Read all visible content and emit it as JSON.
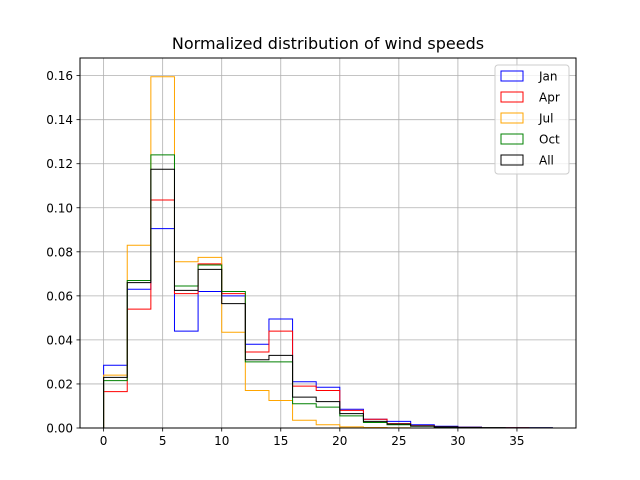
{
  "chart_data": {
    "type": "histogram",
    "title": "Normalized distribution of wind speeds",
    "xlabel": "",
    "ylabel": "",
    "xlim": [
      -2,
      40
    ],
    "ylim": [
      0,
      0.168
    ],
    "grid": true,
    "legend_position": "top-right",
    "bin_edges": [
      0,
      2,
      4,
      6,
      8,
      10,
      12,
      14,
      16,
      18,
      20,
      22,
      24,
      26,
      28,
      30,
      32,
      34,
      36,
      38
    ],
    "x_ticks": [
      0,
      5,
      10,
      15,
      20,
      25,
      30,
      35
    ],
    "y_ticks": [
      0.0,
      0.02,
      0.04,
      0.06,
      0.08,
      0.1,
      0.12,
      0.14,
      0.16
    ],
    "x_tick_labels": [
      "0",
      "5",
      "10",
      "15",
      "20",
      "25",
      "30",
      "35"
    ],
    "y_tick_labels": [
      "0.00",
      "0.02",
      "0.04",
      "0.06",
      "0.08",
      "0.10",
      "0.12",
      "0.14",
      "0.16"
    ],
    "series": [
      {
        "name": "Jan",
        "color": "#0000ff",
        "values": [
          0.0285,
          0.063,
          0.0905,
          0.044,
          0.062,
          0.06,
          0.038,
          0.0495,
          0.021,
          0.0185,
          0.0085,
          0.004,
          0.003,
          0.0015,
          0.0008,
          0.0004,
          0.0002,
          0.0001,
          0.0001
        ]
      },
      {
        "name": "Apr",
        "color": "#ff0000",
        "values": [
          0.0165,
          0.054,
          0.1035,
          0.061,
          0.0745,
          0.061,
          0.0345,
          0.044,
          0.019,
          0.017,
          0.008,
          0.004,
          0.002,
          0.001,
          0.0005,
          0.0003,
          0.0001,
          0.0001,
          0.0
        ]
      },
      {
        "name": "Jul",
        "color": "#ffa500",
        "values": [
          0.024,
          0.083,
          0.1595,
          0.0755,
          0.0775,
          0.0435,
          0.017,
          0.0125,
          0.0035,
          0.0015,
          0.0005,
          0.0002,
          0.0001,
          0.0,
          0.0,
          0.0,
          0.0,
          0.0,
          0.0
        ]
      },
      {
        "name": "Oct",
        "color": "#008000",
        "values": [
          0.0215,
          0.067,
          0.124,
          0.0645,
          0.074,
          0.062,
          0.03,
          0.03,
          0.011,
          0.0095,
          0.0055,
          0.0025,
          0.0015,
          0.0008,
          0.0004,
          0.0002,
          0.0001,
          0.0,
          0.0
        ]
      },
      {
        "name": "All",
        "color": "#000000",
        "values": [
          0.023,
          0.066,
          0.1175,
          0.0625,
          0.072,
          0.0565,
          0.031,
          0.033,
          0.014,
          0.012,
          0.0065,
          0.003,
          0.0018,
          0.0009,
          0.0005,
          0.0003,
          0.0001,
          0.0001,
          0.0001
        ]
      }
    ]
  }
}
